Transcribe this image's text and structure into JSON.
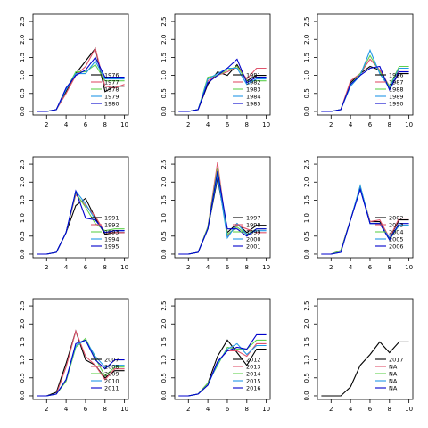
{
  "chart_data": [
    {
      "type": "line",
      "x": [
        1,
        2,
        3,
        4,
        5,
        6,
        7,
        8,
        9,
        10
      ],
      "xticks": [
        2,
        4,
        6,
        8,
        10
      ],
      "ylim": [
        -0.1,
        2.7
      ],
      "yticks": [
        "0.0",
        "0.5",
        "1.0",
        "1.5",
        "2.0",
        "2.5"
      ],
      "legend": "bottom-right",
      "series": [
        {
          "name": "1976",
          "color": "#000000",
          "values": [
            0,
            0,
            0.05,
            0.55,
            1.05,
            1.4,
            1.75,
            0.55,
            0.7,
            0.7
          ]
        },
        {
          "name": "1977",
          "color": "#df536b",
          "values": [
            0,
            0,
            0.05,
            0.5,
            1.0,
            1.25,
            1.75,
            0.7,
            0.65,
            0.75
          ]
        },
        {
          "name": "1978",
          "color": "#61d04f",
          "values": [
            0,
            0,
            0.05,
            0.6,
            1.1,
            1.1,
            1.3,
            0.85,
            0.85,
            0.85
          ]
        },
        {
          "name": "1979",
          "color": "#2297e6",
          "values": [
            0,
            0,
            0.05,
            0.6,
            1.05,
            1.05,
            1.4,
            0.9,
            0.9,
            0.9
          ]
        },
        {
          "name": "1980",
          "color": "#0000cc",
          "values": [
            0,
            0,
            0.05,
            0.65,
            1.0,
            1.15,
            1.5,
            0.95,
            0.95,
            0.95
          ]
        }
      ]
    },
    {
      "type": "line",
      "x": [
        1,
        2,
        3,
        4,
        5,
        6,
        7,
        8,
        9,
        10
      ],
      "xticks": [
        2,
        4,
        6,
        8,
        10
      ],
      "ylim": [
        -0.1,
        2.7
      ],
      "yticks": [
        "0.0",
        "0.5",
        "1.0",
        "1.5",
        "2.0",
        "2.5"
      ],
      "legend": "bottom-right",
      "series": [
        {
          "name": "1981",
          "color": "#000000",
          "values": [
            0,
            0,
            0.05,
            0.75,
            1.1,
            1.0,
            1.3,
            0.85,
            1.0,
            1.0
          ]
        },
        {
          "name": "1982",
          "color": "#df536b",
          "values": [
            0,
            0,
            0.05,
            0.85,
            1.0,
            1.1,
            1.25,
            0.9,
            1.2,
            1.2
          ]
        },
        {
          "name": "1983",
          "color": "#61d04f",
          "values": [
            0,
            0,
            0.05,
            0.95,
            1.0,
            1.15,
            1.25,
            0.85,
            0.85,
            0.85
          ]
        },
        {
          "name": "1984",
          "color": "#2297e6",
          "values": [
            0,
            0,
            0.05,
            0.9,
            1.05,
            1.2,
            1.2,
            0.75,
            0.9,
            0.9
          ]
        },
        {
          "name": "1985",
          "color": "#0000cc",
          "values": [
            0,
            0,
            0.05,
            0.8,
            1.0,
            1.2,
            1.45,
            0.8,
            0.95,
            0.95
          ]
        }
      ]
    },
    {
      "type": "line",
      "x": [
        1,
        2,
        3,
        4,
        5,
        6,
        7,
        8,
        9,
        10
      ],
      "xticks": [
        2,
        4,
        6,
        8,
        10
      ],
      "ylim": [
        -0.1,
        2.7
      ],
      "yticks": [
        "0.0",
        "0.5",
        "1.0",
        "1.5",
        "2.0",
        "2.5"
      ],
      "legend": "bottom-right",
      "series": [
        {
          "name": "1986",
          "color": "#000000",
          "values": [
            0,
            0,
            0.05,
            0.8,
            1.05,
            1.25,
            1.15,
            0.65,
            1.05,
            1.05
          ]
        },
        {
          "name": "1987",
          "color": "#df536b",
          "values": [
            0,
            0,
            0.05,
            0.85,
            1.05,
            1.45,
            1.15,
            0.7,
            1.15,
            1.15
          ]
        },
        {
          "name": "1988",
          "color": "#61d04f",
          "values": [
            0,
            0,
            0.05,
            0.75,
            1.05,
            1.55,
            1.1,
            0.7,
            1.25,
            1.25
          ]
        },
        {
          "name": "1989",
          "color": "#2297e6",
          "values": [
            0,
            0,
            0.05,
            0.7,
            1.0,
            1.7,
            1.05,
            0.65,
            1.2,
            1.2
          ]
        },
        {
          "name": "1990",
          "color": "#0000cc",
          "values": [
            0,
            0,
            0.05,
            0.75,
            1.0,
            1.2,
            1.25,
            0.6,
            1.1,
            1.1
          ]
        }
      ]
    },
    {
      "type": "line",
      "x": [
        1,
        2,
        3,
        4,
        5,
        6,
        7,
        8,
        9,
        10
      ],
      "xticks": [
        2,
        4,
        6,
        8,
        10
      ],
      "ylim": [
        -0.1,
        2.7
      ],
      "yticks": [
        "0.0",
        "0.5",
        "1.0",
        "1.5",
        "2.0",
        "2.5"
      ],
      "legend": "bottom-right",
      "series": [
        {
          "name": "1991",
          "color": "#000000",
          "values": [
            0,
            0,
            0.05,
            0.6,
            1.35,
            1.55,
            1.0,
            0.55,
            0.6,
            0.6
          ]
        },
        {
          "name": "1992",
          "color": "#df536b",
          "values": [
            0,
            0,
            0.05,
            0.6,
            1.65,
            1.35,
            1.05,
            0.6,
            0.6,
            0.6
          ]
        },
        {
          "name": "1993",
          "color": "#61d04f",
          "values": [
            0,
            0,
            0.05,
            0.6,
            1.7,
            1.3,
            0.85,
            0.65,
            0.7,
            0.7
          ]
        },
        {
          "name": "1994",
          "color": "#2297e6",
          "values": [
            0,
            0,
            0.05,
            0.6,
            1.75,
            1.4,
            0.95,
            0.6,
            0.65,
            0.65
          ]
        },
        {
          "name": "1995",
          "color": "#0000cc",
          "values": [
            0,
            0,
            0.05,
            0.6,
            1.75,
            1.0,
            0.95,
            0.6,
            0.65,
            0.65
          ]
        }
      ]
    },
    {
      "type": "line",
      "x": [
        1,
        2,
        3,
        4,
        5,
        6,
        7,
        8,
        9,
        10
      ],
      "xticks": [
        2,
        4,
        6,
        8,
        10
      ],
      "ylim": [
        -0.1,
        2.7
      ],
      "yticks": [
        "0.0",
        "0.5",
        "1.0",
        "1.5",
        "2.0",
        "2.5"
      ],
      "legend": "bottom-right",
      "series": [
        {
          "name": "1997",
          "color": "#000000",
          "values": [
            0,
            0,
            0.05,
            0.7,
            2.1,
            0.6,
            0.85,
            0.6,
            0.8,
            0.8
          ]
        },
        {
          "name": "1998",
          "color": "#df536b",
          "values": [
            0,
            0,
            0.05,
            0.75,
            2.55,
            0.5,
            0.8,
            0.7,
            0.6,
            0.6
          ]
        },
        {
          "name": "1999",
          "color": "#61d04f",
          "values": [
            0,
            0,
            0.05,
            0.75,
            2.4,
            0.55,
            0.75,
            0.55,
            0.7,
            0.7
          ]
        },
        {
          "name": "2000",
          "color": "#2297e6",
          "values": [
            0,
            0,
            0.05,
            0.7,
            2.2,
            0.45,
            0.85,
            0.55,
            0.65,
            0.65
          ]
        },
        {
          "name": "2001",
          "color": "#0000cc",
          "values": [
            0,
            0,
            0.05,
            0.7,
            2.3,
            0.7,
            0.7,
            0.5,
            0.7,
            0.7
          ]
        }
      ]
    },
    {
      "type": "line",
      "x": [
        1,
        2,
        3,
        4,
        5,
        6,
        7,
        8,
        9,
        10
      ],
      "xticks": [
        2,
        4,
        6,
        8,
        10
      ],
      "ylim": [
        -0.1,
        2.7
      ],
      "yticks": [
        "0.0",
        "0.5",
        "1.0",
        "1.5",
        "2.0",
        "2.5"
      ],
      "legend": "bottom-right",
      "series": [
        {
          "name": "2002",
          "color": "#000000",
          "values": [
            0,
            0,
            0.1,
            0.95,
            1.85,
            0.9,
            0.9,
            0.45,
            0.95,
            0.95
          ]
        },
        {
          "name": "2003",
          "color": "#df536b",
          "values": [
            0,
            0,
            0.1,
            0.95,
            1.85,
            0.9,
            0.95,
            0.45,
            1.0,
            1.0
          ]
        },
        {
          "name": "2004",
          "color": "#61d04f",
          "values": [
            0,
            0,
            0.1,
            0.95,
            1.9,
            0.85,
            0.85,
            0.4,
            0.8,
            0.8
          ]
        },
        {
          "name": "2005",
          "color": "#2297e6",
          "values": [
            0,
            0,
            0.05,
            0.95,
            1.9,
            0.85,
            0.85,
            0.45,
            0.8,
            0.8
          ]
        },
        {
          "name": "2006",
          "color": "#0000cc",
          "values": [
            0,
            0,
            0.05,
            0.95,
            1.8,
            0.85,
            0.85,
            0.4,
            0.85,
            0.85
          ]
        }
      ]
    },
    {
      "type": "line",
      "x": [
        1,
        2,
        3,
        4,
        5,
        6,
        7,
        8,
        9,
        10
      ],
      "xticks": [
        2,
        4,
        6,
        8,
        10
      ],
      "ylim": [
        -0.1,
        2.7
      ],
      "yticks": [
        "0.0",
        "0.5",
        "1.0",
        "1.5",
        "2.0",
        "2.5"
      ],
      "legend": "bottom-right",
      "series": [
        {
          "name": "2007",
          "color": "#000000",
          "values": [
            0,
            0,
            0.1,
            0.9,
            1.8,
            1.0,
            0.85,
            0.5,
            0.7,
            0.7
          ]
        },
        {
          "name": "2008",
          "color": "#df536b",
          "values": [
            0,
            0,
            0.05,
            0.8,
            1.8,
            1.1,
            0.85,
            0.45,
            0.75,
            0.75
          ]
        },
        {
          "name": "2009",
          "color": "#61d04f",
          "values": [
            0,
            0,
            0.05,
            0.4,
            1.35,
            1.6,
            1.05,
            0.55,
            0.8,
            0.8
          ]
        },
        {
          "name": "2010",
          "color": "#2297e6",
          "values": [
            0,
            0,
            0.05,
            0.45,
            1.4,
            1.55,
            1.1,
            0.8,
            0.85,
            0.85
          ]
        },
        {
          "name": "2011",
          "color": "#0000cc",
          "values": [
            0,
            0,
            0.05,
            0.45,
            1.45,
            1.55,
            1.0,
            0.75,
            1.0,
            1.0
          ]
        }
      ]
    },
    {
      "type": "line",
      "x": [
        1,
        2,
        3,
        4,
        5,
        6,
        7,
        8,
        9,
        10
      ],
      "xticks": [
        2,
        4,
        6,
        8,
        10
      ],
      "ylim": [
        -0.1,
        2.7
      ],
      "yticks": [
        "0.0",
        "0.5",
        "1.0",
        "1.5",
        "2.0",
        "2.5"
      ],
      "legend": "bottom-right",
      "series": [
        {
          "name": "2012",
          "color": "#000000",
          "values": [
            0,
            0,
            0.05,
            0.35,
            1.1,
            1.55,
            1.2,
            0.85,
            1.3,
            1.3
          ]
        },
        {
          "name": "2013",
          "color": "#df536b",
          "values": [
            0,
            0,
            0.05,
            0.3,
            0.95,
            1.25,
            1.25,
            1.1,
            1.45,
            1.45
          ]
        },
        {
          "name": "2014",
          "color": "#61d04f",
          "values": [
            0,
            0,
            0.05,
            0.35,
            0.85,
            1.35,
            1.3,
            1.3,
            1.55,
            1.55
          ]
        },
        {
          "name": "2015",
          "color": "#2297e6",
          "values": [
            0,
            0,
            0.05,
            0.3,
            0.9,
            1.3,
            1.45,
            1.15,
            1.4,
            1.4
          ]
        },
        {
          "name": "2016",
          "color": "#0000cc",
          "values": [
            0,
            0,
            0.05,
            0.3,
            0.95,
            1.25,
            1.35,
            1.3,
            1.7,
            1.7
          ]
        }
      ]
    },
    {
      "type": "line",
      "x": [
        1,
        2,
        3,
        4,
        5,
        6,
        7,
        8,
        9,
        10
      ],
      "xticks": [
        2,
        4,
        6,
        8,
        10
      ],
      "ylim": [
        -0.1,
        2.7
      ],
      "yticks": [
        "0.0",
        "0.5",
        "1.0",
        "1.5",
        "2.0",
        "2.5"
      ],
      "legend": "bottom-right",
      "series": [
        {
          "name": "2017",
          "color": "#000000",
          "values": [
            0,
            0,
            0.0,
            0.25,
            0.85,
            1.15,
            1.5,
            1.2,
            1.5,
            1.5
          ]
        },
        {
          "name": "NA",
          "color": "#df536b",
          "values": null
        },
        {
          "name": "NA",
          "color": "#61d04f",
          "values": null
        },
        {
          "name": "NA",
          "color": "#2297e6",
          "values": null
        },
        {
          "name": "NA",
          "color": "#0000cc",
          "values": null
        }
      ]
    }
  ]
}
